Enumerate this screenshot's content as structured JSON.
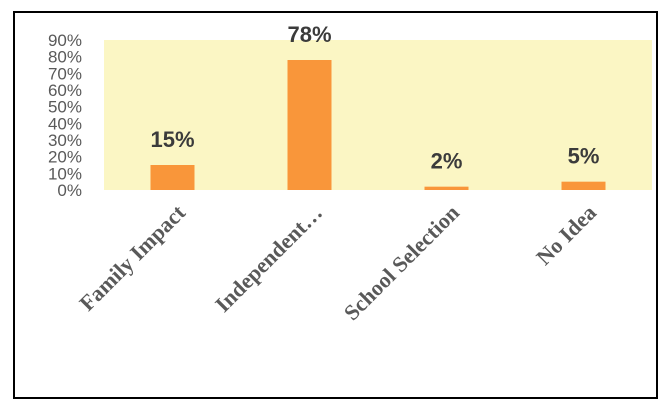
{
  "colors": {
    "plot_background": "#fbf6c4",
    "bar": "#f9963a",
    "frame": "#000000",
    "tick_text": "#595959",
    "label_text": "#3b3b3b"
  },
  "chart_data": {
    "type": "bar",
    "categories": [
      "Family Impact",
      "Independent…",
      "School Selection",
      "No Idea"
    ],
    "values": [
      15,
      78,
      2,
      5
    ],
    "data_labels": [
      "15%",
      "78%",
      "2%",
      "5%"
    ],
    "y_ticks": [
      "0%",
      "10%",
      "20%",
      "30%",
      "40%",
      "50%",
      "60%",
      "70%",
      "80%",
      "90%"
    ],
    "ylim": [
      0,
      90
    ],
    "grid": false,
    "legend": "none",
    "category_label_rotation": "45 degrees counterclockwise"
  }
}
